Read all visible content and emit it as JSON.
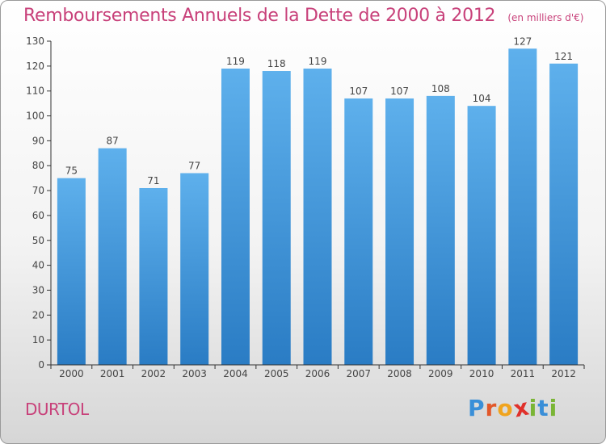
{
  "header": {
    "title": "Remboursements Annuels de la Dette de 2000 à 2012",
    "unit": "(en milliers d'€)"
  },
  "footer": {
    "city": "DURTOL",
    "logo_letters": [
      "P",
      "r",
      "o",
      "x",
      "i",
      "t",
      "i"
    ],
    "logo_colors": [
      "#3a8fd8",
      "#e2582a",
      "#f0a41e",
      "#e0312b",
      "#7ab536",
      "#3a8fd8",
      "#7ab536"
    ]
  },
  "colors": {
    "bar_light": "#5eb0ec",
    "bar_dark": "#2a7cc4",
    "axis": "#333333",
    "grid": "#cfcfcf"
  },
  "chart_data": {
    "type": "bar",
    "categories": [
      "2000",
      "2001",
      "2002",
      "2003",
      "2004",
      "2005",
      "2006",
      "2007",
      "2008",
      "2009",
      "2010",
      "2011",
      "2012"
    ],
    "values": [
      75,
      87,
      71,
      77,
      119,
      118,
      119,
      107,
      107,
      108,
      104,
      127,
      121
    ],
    "data_labels": [
      "75",
      "87",
      "71",
      "77",
      "119",
      "118",
      "119",
      "107",
      "107",
      "108",
      "104",
      "127",
      "121"
    ],
    "yticks": [
      0,
      10,
      20,
      30,
      40,
      50,
      60,
      70,
      80,
      90,
      100,
      110,
      120,
      130
    ],
    "ylim": [
      0,
      130
    ],
    "title": "Remboursements Annuels de la Dette de 2000 à 2012",
    "xlabel": "",
    "ylabel": "",
    "grid": false,
    "legend": "none"
  }
}
